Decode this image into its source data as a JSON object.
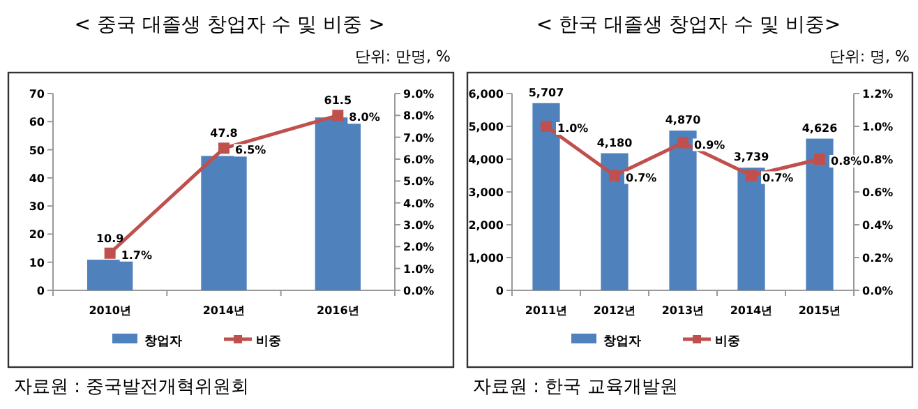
{
  "chart_data": [
    {
      "type": "bar",
      "title": "< 중국 대졸생 창업자 수 및 비중 >",
      "subtitle": "단위: 만명, %",
      "categories": [
        "2010년",
        "2014년",
        "2016년"
      ],
      "legend": "bottom",
      "marker": "square",
      "ylim": [
        0,
        70
      ],
      "yticks": [
        0,
        10,
        20,
        30,
        40,
        50,
        60,
        70
      ],
      "y2lim": [
        0,
        9
      ],
      "y2ticks": [
        {
          "value": 0,
          "label": "0.0%"
        },
        {
          "value": 1,
          "label": "1.0%"
        },
        {
          "value": 2,
          "label": "2.0%"
        },
        {
          "value": 3,
          "label": "3.0%"
        },
        {
          "value": 4,
          "label": "4.0%"
        },
        {
          "value": 5,
          "label": "5.0%"
        },
        {
          "value": 6,
          "label": "6.0%"
        },
        {
          "value": 7,
          "label": "7.0%"
        },
        {
          "value": 8,
          "label": "8.0%"
        },
        {
          "value": 9,
          "label": "9.0%"
        }
      ],
      "series": [
        {
          "name": "창업자",
          "type": "bar",
          "color": "#4f81bd",
          "values": [
            10.9,
            47.8,
            61.5
          ],
          "value_labels": [
            "10.9",
            "47.8",
            "61.5"
          ]
        },
        {
          "name": "비중",
          "type": "line",
          "axis": "y2",
          "color": "#c0504d",
          "values": [
            1.7,
            6.5,
            8.0
          ],
          "value_labels": [
            "1.7%",
            "6.5%",
            "8.0%"
          ]
        }
      ],
      "annotations": [
        "자료원 : 중국발전개혁위원회"
      ]
    },
    {
      "type": "bar",
      "title": "< 한국 대졸생 창업자 수 및 비중>",
      "subtitle": "단위: 명, %",
      "categories": [
        "2011년",
        "2012년",
        "2013년",
        "2014년",
        "2015년"
      ],
      "legend": "bottom",
      "marker": "square",
      "ylim": [
        0,
        6000
      ],
      "yticks": [
        0,
        {
          "value": 1000,
          "label": "1,000"
        },
        {
          "value": 2000,
          "label": "2,000"
        },
        {
          "value": 3000,
          "label": "3,000"
        },
        {
          "value": 4000,
          "label": "4,000"
        },
        {
          "value": 5000,
          "label": "5,000"
        },
        {
          "value": 6000,
          "label": "6,000"
        }
      ],
      "y2lim": [
        0,
        1.2
      ],
      "y2ticks": [
        {
          "value": 0,
          "label": "0.0%"
        },
        {
          "value": 0.2,
          "label": "0.2%"
        },
        {
          "value": 0.4,
          "label": "0.4%"
        },
        {
          "value": 0.6,
          "label": "0.6%"
        },
        {
          "value": 0.8,
          "label": "0.8%"
        },
        {
          "value": 1.0,
          "label": "1.0%"
        },
        {
          "value": 1.2,
          "label": "1.2%"
        }
      ],
      "series": [
        {
          "name": "창업자",
          "type": "bar",
          "color": "#4f81bd",
          "values": [
            5707,
            4180,
            4870,
            3739,
            4626
          ],
          "value_labels": [
            "5,707",
            "4,180",
            "4,870",
            "3,739",
            "4,626"
          ]
        },
        {
          "name": "비중",
          "type": "line",
          "axis": "y2",
          "color": "#c0504d",
          "values": [
            1.0,
            0.7,
            0.9,
            0.7,
            0.8
          ],
          "value_labels": [
            "1.0%",
            "0.7%",
            "0.9%",
            "0.7%",
            "0.8%"
          ]
        }
      ],
      "annotations": [
        "자료원 : 한국 교육개발원"
      ]
    }
  ]
}
